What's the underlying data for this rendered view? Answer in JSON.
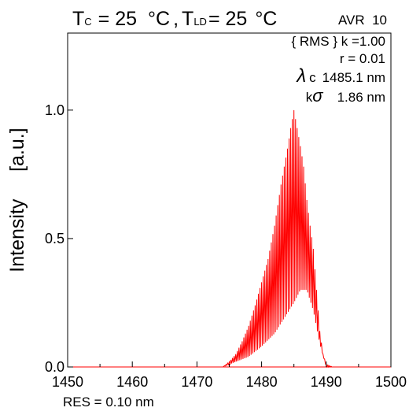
{
  "chart_data": {
    "type": "line",
    "title": {
      "tc_main": "T",
      "tc_sub": "C",
      "tc_value": "= 25",
      "tc_unit": "°C",
      "sep": ",",
      "tld_main": "T",
      "tld_sub": "LD",
      "tld_value": "= 25",
      "tld_unit": "°C",
      "avr": "AVR  10"
    },
    "annotations": {
      "rms": "{ RMS } k =1.00",
      "r": "r = 0.01",
      "lambda_symbol": "λ",
      "lambda_label": "c",
      "lambda_value": "1485.1 nm",
      "sigma_k": "k",
      "sigma_symbol": "σ",
      "sigma_value": "1.86 nm"
    },
    "ylabel": "Intensity     [a.u.]",
    "xlabel": "",
    "resolution": "RES = 0.10 nm",
    "xlim": [
      1450,
      1500
    ],
    "ylim": [
      0,
      1.3
    ],
    "xticks": [
      "1450",
      "1460",
      "1470",
      "1480",
      "1490",
      "1500"
    ],
    "yticks": [
      {
        "value": 0,
        "label": "0.0"
      },
      {
        "value": 0.5,
        "label": "0.5"
      },
      {
        "value": 1.0,
        "label": "1.0"
      }
    ],
    "grid": false,
    "series": [
      {
        "color": "#ff0000",
        "style": "fabry-perot longitudinal modes (peaks)",
        "x": [
          1474.0,
          1475.0,
          1476.0,
          1477.0,
          1478.0,
          1479.0,
          1480.0,
          1481.0,
          1482.0,
          1483.0,
          1484.0,
          1484.5,
          1485.0,
          1485.5,
          1486.0,
          1486.5,
          1487.0,
          1487.5,
          1488.0,
          1488.5,
          1489.0,
          1489.5,
          1490.0,
          1491.0
        ],
        "y": [
          0.0,
          0.02,
          0.05,
          0.1,
          0.16,
          0.24,
          0.33,
          0.42,
          0.55,
          0.71,
          0.85,
          0.93,
          1.0,
          0.93,
          0.86,
          0.78,
          0.65,
          0.55,
          0.46,
          0.3,
          0.14,
          0.05,
          0.01,
          0.0
        ]
      },
      {
        "color": "#ff0000",
        "style": "inter-mode floor (valleys)",
        "x": [
          1474.0,
          1476.0,
          1478.0,
          1480.0,
          1482.0,
          1483.0,
          1484.0,
          1485.0,
          1486.0,
          1487.0,
          1488.0,
          1489.0,
          1490.0,
          1491.0
        ],
        "y": [
          0.0,
          0.02,
          0.04,
          0.08,
          0.13,
          0.17,
          0.21,
          0.25,
          0.3,
          0.3,
          0.22,
          0.09,
          0.0,
          0.0
        ]
      }
    ]
  }
}
